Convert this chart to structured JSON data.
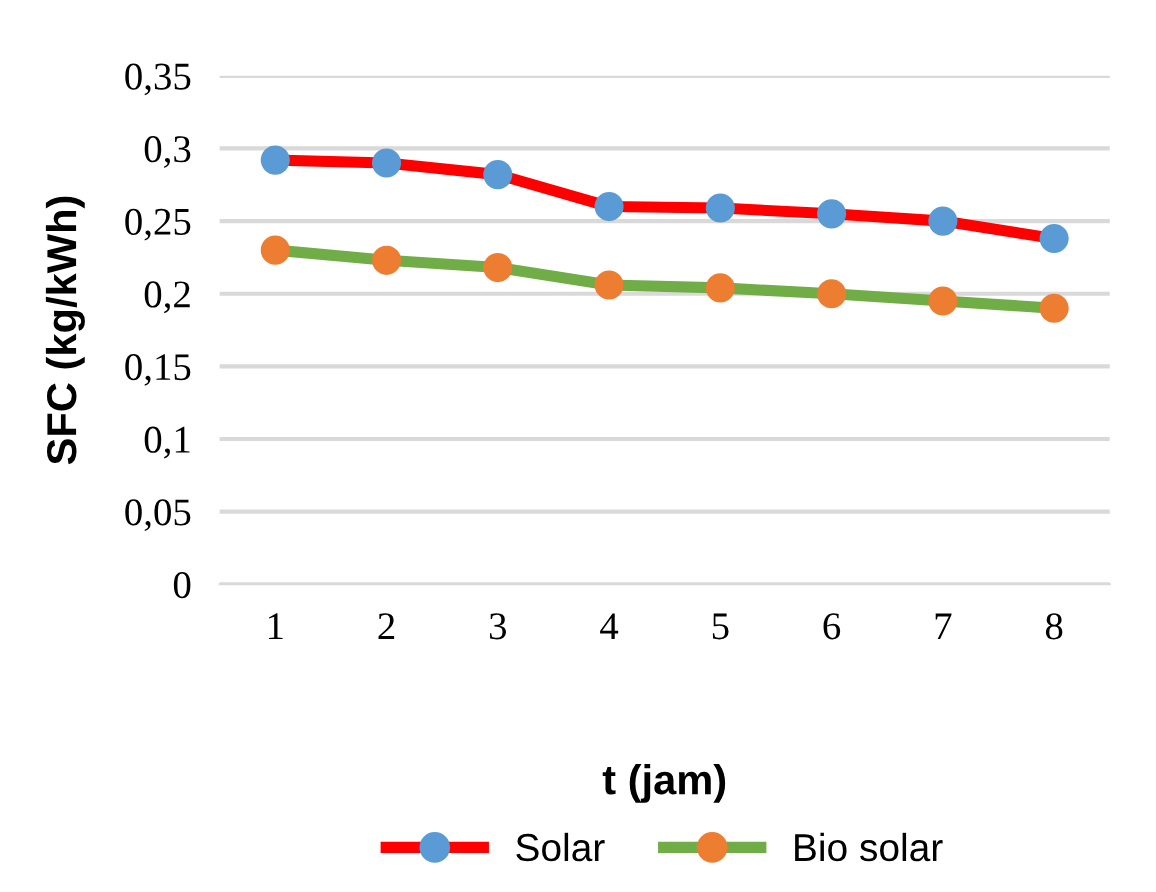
{
  "chart_data": {
    "type": "line",
    "xlabel": "t (jam)",
    "ylabel": "SFC (kg/kWh)",
    "categories": [
      "1",
      "2",
      "3",
      "4",
      "5",
      "6",
      "7",
      "8"
    ],
    "series": [
      {
        "name": "Solar",
        "color": "#ff0000",
        "colors": [
          "#5b9bd5",
          "#5b9bd5",
          "#5b9bd5",
          "#5b9bd5",
          "#5b9bd5",
          "#5b9bd5",
          "#5b9bd5",
          "#5b9bd5"
        ],
        "values": [
          0.292,
          0.29,
          0.282,
          0.26,
          0.259,
          0.255,
          0.25,
          0.238
        ]
      },
      {
        "name": "Bio solar",
        "color": "#70ad47",
        "colors": [
          "#ed7d31",
          "#ed7d31",
          "#ed7d31",
          "#ed7d31",
          "#ed7d31",
          "#ed7d31",
          "#ed7d31",
          "#ed7d31"
        ],
        "values": [
          0.23,
          0.223,
          0.218,
          0.206,
          0.204,
          0.2,
          0.195,
          0.19
        ]
      }
    ],
    "ylim": [
      0,
      0.35
    ],
    "yticks": [
      0,
      {
        "value": 0.05,
        "label": "0,05"
      },
      {
        "value": 0.1,
        "label": "0,1"
      },
      {
        "value": 0.15,
        "label": "0,15"
      },
      {
        "value": 0.2,
        "label": "0,2"
      },
      {
        "value": 0.25,
        "label": "0,25"
      },
      {
        "value": 0.3,
        "label": "0,3"
      },
      {
        "value": 0.35,
        "label": "0,35"
      }
    ],
    "grid": "y",
    "legend": "bottom",
    "marker": "circle",
    "line_style": "solid"
  }
}
